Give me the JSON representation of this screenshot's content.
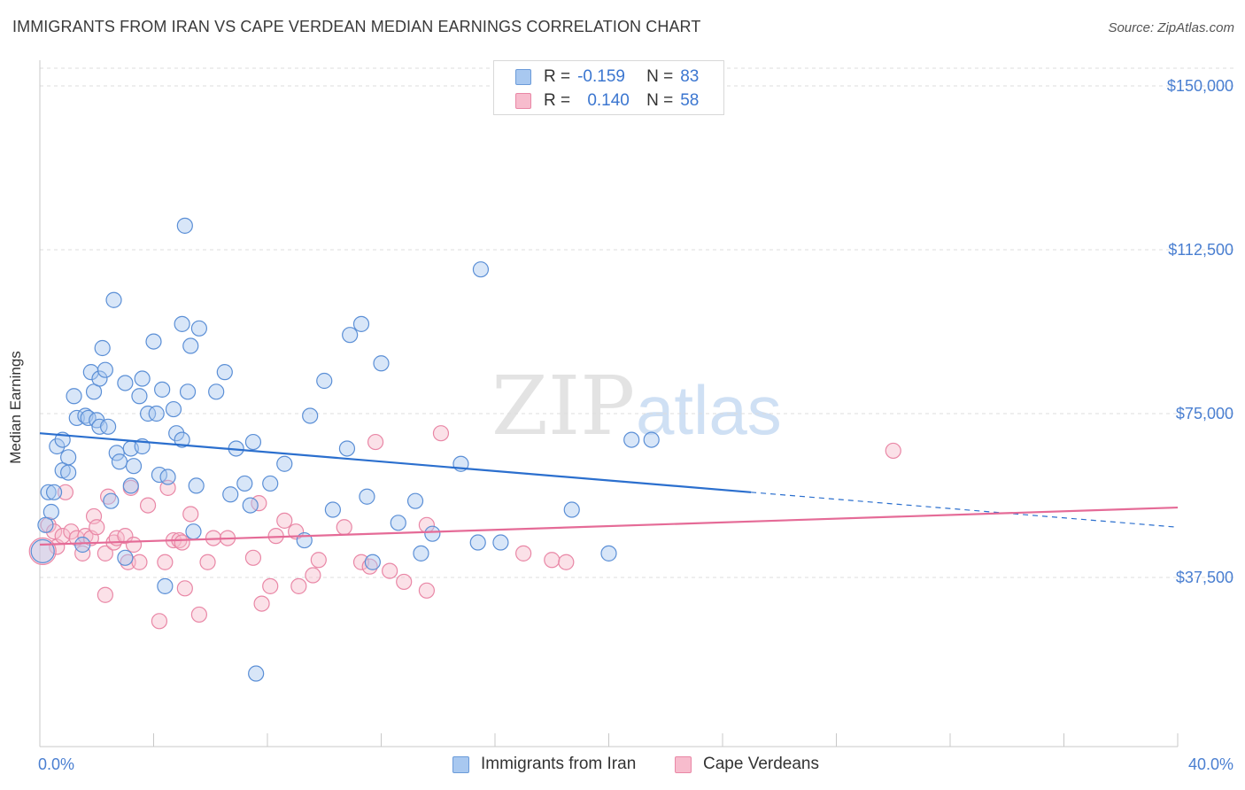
{
  "header": {
    "title": "IMMIGRANTS FROM IRAN VS CAPE VERDEAN MEDIAN EARNINGS CORRELATION CHART",
    "source": "Source: ZipAtlas.com"
  },
  "watermark": {
    "zip": "ZIP",
    "atlas": "atlas"
  },
  "legend": {
    "rows": [
      {
        "r_label": "R =",
        "r_value": "-0.159",
        "n_label": "N =",
        "n_value": "83"
      },
      {
        "r_label": "R =",
        "r_value": "0.140",
        "n_label": "N =",
        "n_value": "58"
      }
    ]
  },
  "colors": {
    "series1_fill": "#a8c8f0",
    "series1_stroke": "#5b8fd6",
    "series1_line": "#2b6fce",
    "series2_fill": "#f7bccd",
    "series2_stroke": "#e987a6",
    "series2_line": "#e56b97",
    "tick_text": "#4a7fd1",
    "grid": "#dcdcdc"
  },
  "chart_data": {
    "type": "scatter",
    "title": "IMMIGRANTS FROM IRAN VS CAPE VERDEAN MEDIAN EARNINGS CORRELATION CHART",
    "xlabel": "",
    "ylabel": "Median Earnings",
    "xlim": [
      0,
      40
    ],
    "ylim": [
      0,
      155000
    ],
    "x_tick_labels": [
      "0.0%",
      "40.0%"
    ],
    "y_ticks": [
      37500,
      75000,
      112500,
      150000
    ],
    "y_tick_labels": [
      "$37,500",
      "$75,000",
      "$112,500",
      "$150,000"
    ],
    "series": [
      {
        "name": "Immigrants from Iran",
        "r": -0.159,
        "n": 83,
        "trend": {
          "x0": 0,
          "y0": 70500,
          "x1": 25,
          "y1": 57000,
          "dashed_to_x": 40,
          "dashed_to_y": 49000
        },
        "points": [
          [
            0.3,
            57000
          ],
          [
            0.4,
            52500
          ],
          [
            0.5,
            57000
          ],
          [
            0.6,
            67500
          ],
          [
            0.8,
            69000
          ],
          [
            0.8,
            62000
          ],
          [
            1.0,
            61500
          ],
          [
            1.0,
            65000
          ],
          [
            1.2,
            79000
          ],
          [
            1.3,
            74000
          ],
          [
            1.5,
            45000
          ],
          [
            1.6,
            74500
          ],
          [
            1.7,
            74000
          ],
          [
            1.8,
            84500
          ],
          [
            1.9,
            80000
          ],
          [
            2.0,
            73500
          ],
          [
            2.1,
            83000
          ],
          [
            2.1,
            72000
          ],
          [
            2.2,
            90000
          ],
          [
            2.3,
            85000
          ],
          [
            2.4,
            72000
          ],
          [
            2.5,
            55000
          ],
          [
            2.6,
            101000
          ],
          [
            2.7,
            66000
          ],
          [
            2.8,
            64000
          ],
          [
            3.0,
            82000
          ],
          [
            3.0,
            42000
          ],
          [
            3.2,
            67000
          ],
          [
            3.2,
            58500
          ],
          [
            3.3,
            63000
          ],
          [
            3.5,
            79000
          ],
          [
            3.6,
            83000
          ],
          [
            3.6,
            67500
          ],
          [
            3.8,
            75000
          ],
          [
            4.0,
            91500
          ],
          [
            4.1,
            75000
          ],
          [
            4.2,
            61000
          ],
          [
            4.3,
            80500
          ],
          [
            4.4,
            35500
          ],
          [
            4.5,
            60500
          ],
          [
            4.7,
            76000
          ],
          [
            4.8,
            70500
          ],
          [
            5.0,
            95500
          ],
          [
            5.0,
            69000
          ],
          [
            5.1,
            118000
          ],
          [
            5.2,
            80000
          ],
          [
            5.3,
            90500
          ],
          [
            5.4,
            48000
          ],
          [
            5.5,
            58500
          ],
          [
            5.6,
            94500
          ],
          [
            6.2,
            80000
          ],
          [
            6.5,
            84500
          ],
          [
            6.7,
            56500
          ],
          [
            6.9,
            67000
          ],
          [
            7.2,
            59000
          ],
          [
            7.4,
            54000
          ],
          [
            7.5,
            68500
          ],
          [
            7.6,
            15500
          ],
          [
            8.1,
            59000
          ],
          [
            8.6,
            63500
          ],
          [
            9.3,
            46000
          ],
          [
            9.5,
            74500
          ],
          [
            10.0,
            82500
          ],
          [
            10.3,
            53000
          ],
          [
            10.8,
            67000
          ],
          [
            10.9,
            93000
          ],
          [
            11.3,
            95500
          ],
          [
            11.5,
            56000
          ],
          [
            11.7,
            41000
          ],
          [
            12.0,
            86500
          ],
          [
            12.6,
            50000
          ],
          [
            13.2,
            55000
          ],
          [
            13.4,
            43000
          ],
          [
            13.8,
            47500
          ],
          [
            14.8,
            63500
          ],
          [
            15.4,
            45500
          ],
          [
            15.5,
            108000
          ],
          [
            16.2,
            45500
          ],
          [
            18.7,
            53000
          ],
          [
            20.0,
            43000
          ],
          [
            20.8,
            69000
          ],
          [
            21.5,
            69000
          ],
          [
            0.2,
            49500
          ]
        ]
      },
      {
        "name": "Cape Verdeans",
        "r": 0.14,
        "n": 58,
        "trend": {
          "x0": 0,
          "y0": 45000,
          "x1": 40,
          "y1": 53500
        },
        "points": [
          [
            0.3,
            49500
          ],
          [
            0.5,
            48000
          ],
          [
            0.6,
            44500
          ],
          [
            0.8,
            47000
          ],
          [
            0.9,
            57000
          ],
          [
            1.1,
            48000
          ],
          [
            1.3,
            46500
          ],
          [
            1.5,
            43000
          ],
          [
            1.6,
            47000
          ],
          [
            1.8,
            46500
          ],
          [
            1.9,
            51500
          ],
          [
            2.0,
            49000
          ],
          [
            2.3,
            43000
          ],
          [
            2.3,
            33500
          ],
          [
            2.4,
            56000
          ],
          [
            2.6,
            45500
          ],
          [
            2.7,
            46500
          ],
          [
            3.0,
            47000
          ],
          [
            3.1,
            41000
          ],
          [
            3.2,
            58000
          ],
          [
            3.3,
            45000
          ],
          [
            3.5,
            41000
          ],
          [
            3.8,
            54000
          ],
          [
            4.2,
            27500
          ],
          [
            4.4,
            41000
          ],
          [
            4.5,
            58000
          ],
          [
            4.7,
            46000
          ],
          [
            4.9,
            46000
          ],
          [
            5.0,
            45500
          ],
          [
            5.1,
            35000
          ],
          [
            5.3,
            52000
          ],
          [
            5.6,
            29000
          ],
          [
            5.9,
            41000
          ],
          [
            6.1,
            46500
          ],
          [
            6.6,
            46500
          ],
          [
            7.5,
            42000
          ],
          [
            7.7,
            54500
          ],
          [
            7.8,
            31500
          ],
          [
            8.1,
            35500
          ],
          [
            8.3,
            47000
          ],
          [
            8.6,
            50500
          ],
          [
            9.0,
            48000
          ],
          [
            9.1,
            35500
          ],
          [
            9.6,
            38000
          ],
          [
            9.8,
            41500
          ],
          [
            10.7,
            49000
          ],
          [
            11.3,
            41000
          ],
          [
            11.6,
            40000
          ],
          [
            11.8,
            68500
          ],
          [
            12.3,
            39000
          ],
          [
            12.8,
            36500
          ],
          [
            13.6,
            49500
          ],
          [
            13.6,
            34500
          ],
          [
            14.1,
            70500
          ],
          [
            17.0,
            43000
          ],
          [
            18.0,
            41500
          ],
          [
            18.5,
            41000
          ],
          [
            30.0,
            66500
          ]
        ]
      }
    ]
  },
  "bottom_legend": {
    "items": [
      {
        "label": "Immigrants from Iran"
      },
      {
        "label": "Cape Verdeans"
      }
    ]
  }
}
